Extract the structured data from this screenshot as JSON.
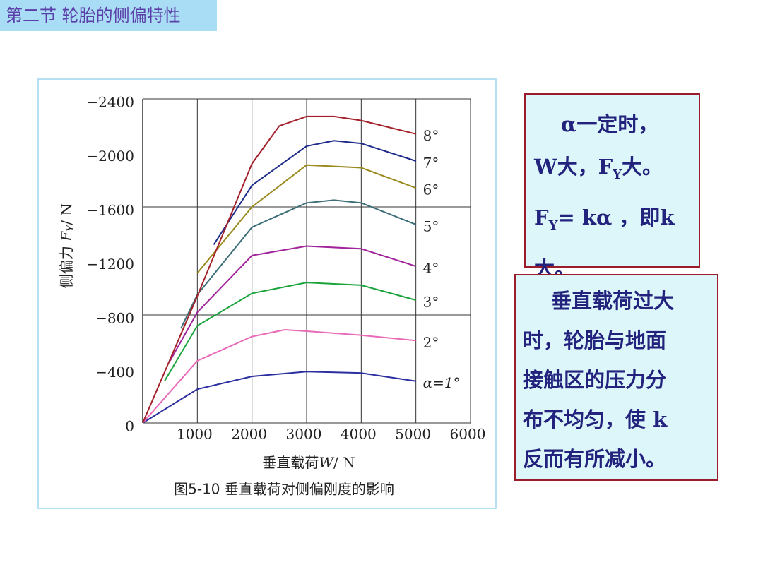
{
  "header": {
    "title": "第二节  轮胎的侧偏特性"
  },
  "chart_data": {
    "type": "line",
    "ylabel": {
      "main": "侧偏力",
      "var": "F",
      "sub": "Y",
      "unit": "/ N"
    },
    "xlabel": {
      "main": "垂直载荷",
      "var": "W",
      "unit": "/ N"
    },
    "caption": "图5-10   垂直载荷对侧偏刚度的影响",
    "xlim": [
      0,
      6000
    ],
    "ylim": [
      0,
      -2400
    ],
    "xticks": [
      1000,
      2000,
      3000,
      4000,
      5000,
      6000
    ],
    "yticks": [
      0,
      {
        "value": -400,
        "label": "−400"
      },
      {
        "value": -800,
        "label": "−800"
      },
      {
        "value": -1200,
        "label": "−1200"
      },
      {
        "value": -1600,
        "label": "−1600"
      },
      {
        "value": -2000,
        "label": "−2000"
      },
      {
        "value": -2400,
        "label": "−2400"
      }
    ],
    "grid": true,
    "series": [
      {
        "name": "α=1°",
        "color": "#2b2fa0",
        "x": [
          0,
          1000,
          2000,
          3000,
          4000,
          5000
        ],
        "values": [
          0,
          -250,
          -345,
          -380,
          -370,
          -310
        ]
      },
      {
        "name": "2°",
        "color": "#e86ab8",
        "x": [
          0,
          1000,
          2000,
          2600,
          3000,
          4000,
          5000
        ],
        "values": [
          0,
          -460,
          -640,
          -690,
          -680,
          -650,
          -610
        ]
      },
      {
        "name": "3°",
        "color": "#1aa33a",
        "x": [
          400,
          1000,
          2000,
          3000,
          4000,
          5000
        ],
        "values": [
          -310,
          -720,
          -960,
          -1040,
          -1020,
          -910
        ]
      },
      {
        "name": "4°",
        "color": "#a0239a",
        "x": [
          500,
          1000,
          2000,
          3000,
          4000,
          5000
        ],
        "values": [
          -460,
          -820,
          -1240,
          -1310,
          -1290,
          -1160
        ]
      },
      {
        "name": "5°",
        "color": "#3c6e78",
        "x": [
          700,
          1000,
          2000,
          3000,
          3500,
          4000,
          5000
        ],
        "values": [
          -700,
          -950,
          -1450,
          -1630,
          -1650,
          -1630,
          -1470
        ]
      },
      {
        "name": "6°",
        "color": "#9a8a1e",
        "x": [
          1000,
          2000,
          3000,
          4000,
          5000
        ],
        "values": [
          -1110,
          -1600,
          -1910,
          -1890,
          -1740
        ]
      },
      {
        "name": "7°",
        "color": "#1e2a8a",
        "x": [
          1300,
          2000,
          3000,
          3500,
          4000,
          5000
        ],
        "values": [
          -1320,
          -1760,
          -2050,
          -2090,
          -2070,
          -1940
        ]
      },
      {
        "name": "8°",
        "color": "#a3202a",
        "x": [
          0,
          1000,
          2000,
          2500,
          3000,
          3500,
          4000,
          5000
        ],
        "values": [
          0,
          -940,
          -1920,
          -2200,
          -2270,
          -2270,
          -2240,
          -2140
        ]
      }
    ]
  },
  "box1": {
    "line1": "α一定时，",
    "line2": [
      "W大，F",
      "Y",
      "大。"
    ],
    "line3": [
      "F",
      "Y",
      "= kα ，即k"
    ],
    "line4": "大。"
  },
  "box2": {
    "lines": [
      "垂直载荷过大",
      "时，轮胎与地面",
      "接触区的压力分",
      "布不均匀，使 k",
      "反而有所减小。"
    ]
  }
}
